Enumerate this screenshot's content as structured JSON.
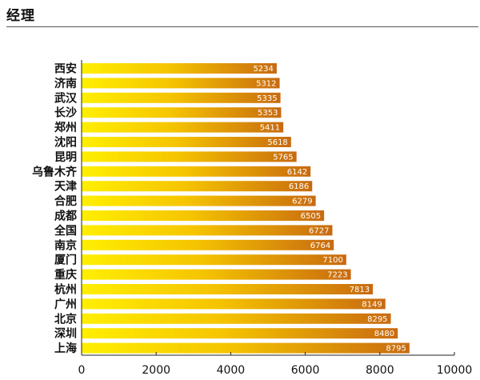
{
  "page": {
    "title": "经理"
  },
  "chart_data": {
    "type": "bar",
    "orientation": "horizontal",
    "title": "经理",
    "categories": [
      "西安",
      "济南",
      "武汉",
      "长沙",
      "郑州",
      "沈阳",
      "昆明",
      "乌鲁木齐",
      "天津",
      "合肥",
      "成都",
      "全国",
      "南京",
      "厦门",
      "重庆",
      "杭州",
      "广州",
      "北京",
      "深圳",
      "上海"
    ],
    "values": [
      5234,
      5312,
      5335,
      5353,
      5411,
      5618,
      5765,
      6142,
      6186,
      6279,
      6505,
      6727,
      6764,
      7100,
      7223,
      7813,
      8149,
      8295,
      8480,
      8795
    ],
    "xlim": [
      0,
      10000
    ],
    "xticks": [
      0,
      2000,
      4000,
      6000,
      8000,
      10000
    ],
    "xlabel": "",
    "ylabel": "",
    "grid": false,
    "bar_gradient": [
      "#ffef00",
      "#f5c400",
      "#c86a10"
    ]
  }
}
